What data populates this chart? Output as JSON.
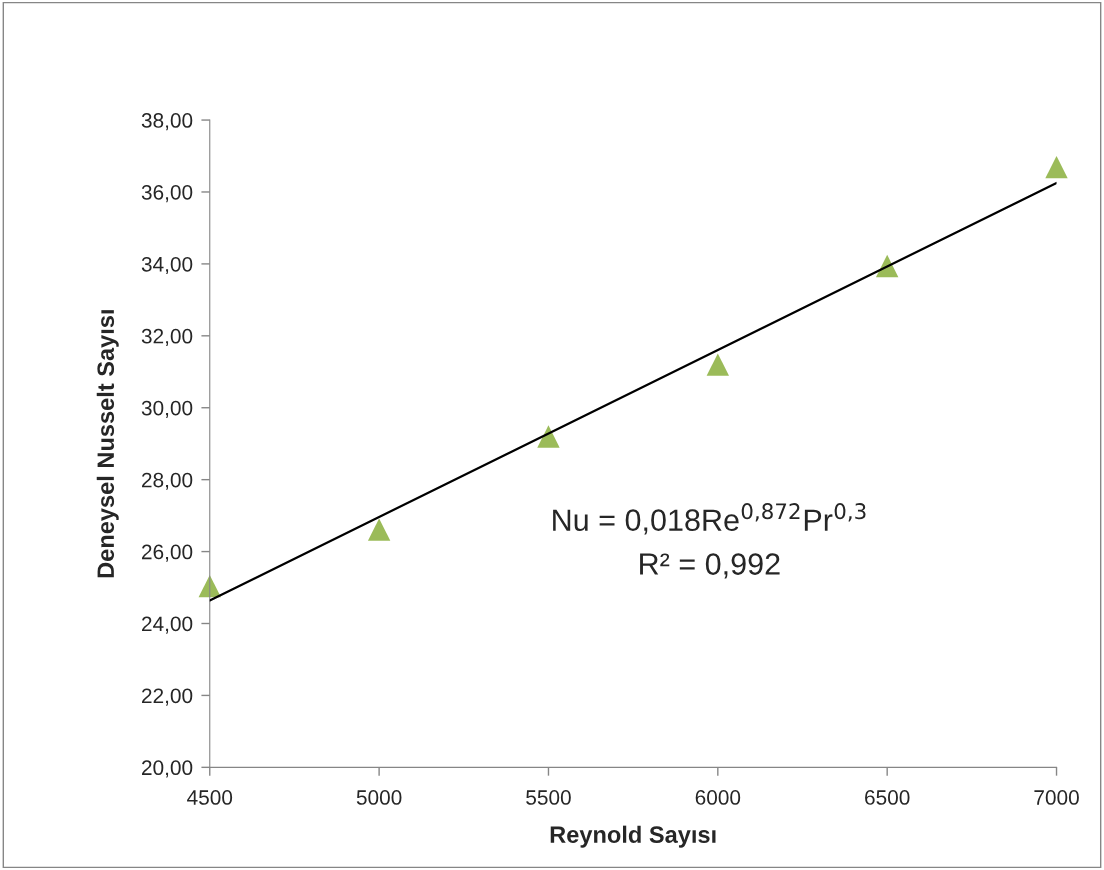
{
  "chart_data": {
    "type": "scatter",
    "xlabel": "Reynold Sayısı",
    "ylabel": "Deneysel Nusselt Sayısı",
    "series": [
      {
        "color": "#9bbb59",
        "marker": "triangle",
        "x": [
          4500,
          5000,
          5500,
          6000,
          6500,
          7000
        ],
        "values": [
          25.04,
          26.61,
          29.2,
          31.2,
          33.94,
          36.69
        ]
      },
      {
        "type": "line",
        "color": "#000000",
        "marker": "none",
        "line_style": "solid",
        "x": [
          4500,
          7000
        ],
        "values": [
          24.64,
          36.25
        ]
      }
    ],
    "annotations": [
      "Nu = 0,018Re$^{0,872}$Pr$^{0,3}$",
      "R² = 0,992"
    ],
    "xlim": [
      4500,
      7000
    ],
    "xticks": [
      4500,
      5000,
      5500,
      6000,
      6500,
      7000
    ],
    "ylim": [
      20,
      38
    ],
    "yticks": [
      {
        "value": 20,
        "label": "20,00"
      },
      {
        "value": 22,
        "label": "22,00"
      },
      {
        "value": 24,
        "label": "24,00"
      },
      {
        "value": 26,
        "label": "26,00"
      },
      {
        "value": 28,
        "label": "28,00"
      },
      {
        "value": 30,
        "label": "30,00"
      },
      {
        "value": 32,
        "label": "32,00"
      },
      {
        "value": 34,
        "label": "34,00"
      },
      {
        "value": 36,
        "label": "36,00"
      },
      {
        "value": 38,
        "label": "38,00"
      }
    ],
    "grid": false
  }
}
